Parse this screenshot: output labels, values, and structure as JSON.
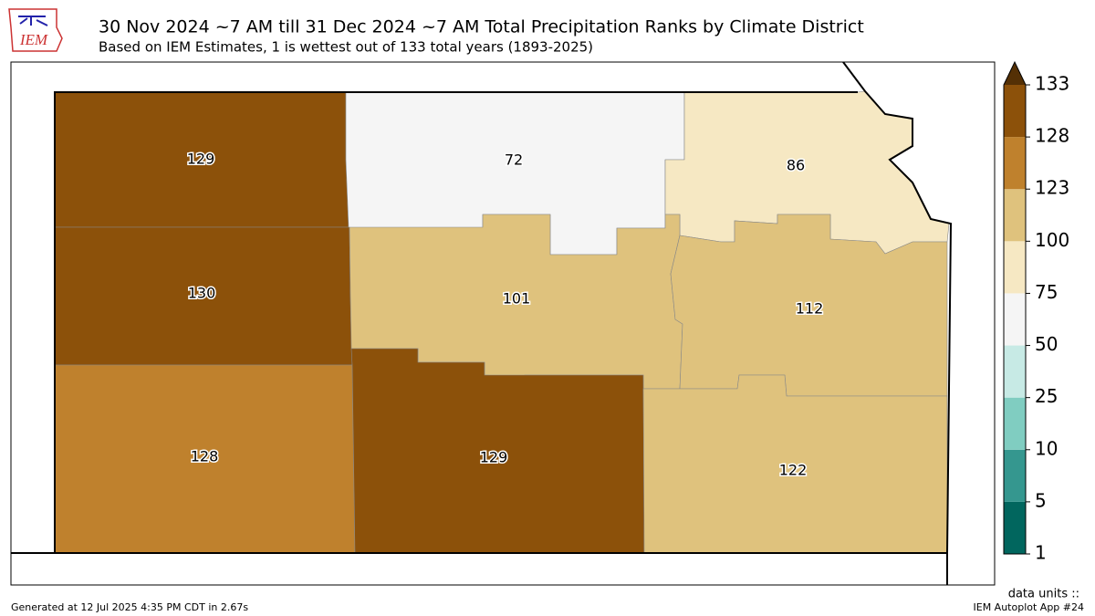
{
  "header": {
    "logo": "IEM",
    "title": "30 Nov 2024 ~7 AM till 31 Dec 2024 ~7 AM Total Precipitation Ranks by Climate District",
    "subtitle": "Based on IEM Estimates, 1 is wettest out of 133 total years (1893-2025)"
  },
  "districts": [
    {
      "value": 129
    },
    {
      "value": 72
    },
    {
      "value": 86
    },
    {
      "value": 130
    },
    {
      "value": 101
    },
    {
      "value": 112
    },
    {
      "value": 128
    },
    {
      "value": 129
    },
    {
      "value": 122
    }
  ],
  "colorbar": {
    "levels": [
      1,
      5,
      10,
      25,
      50,
      75,
      100,
      123,
      128,
      133
    ],
    "colors": [
      "#01665e",
      "#35978f",
      "#80cdc1",
      "#c7eae5",
      "#f5f5f5",
      "#f6e8c3",
      "#dfc27d",
      "#bf812d",
      "#8c510a"
    ],
    "extend_color": "#543005",
    "units": "data units ::"
  },
  "footer": {
    "generated": "Generated at 12 Jul 2025 4:35 PM CDT in 2.67s",
    "app": "IEM Autoplot App #24"
  }
}
